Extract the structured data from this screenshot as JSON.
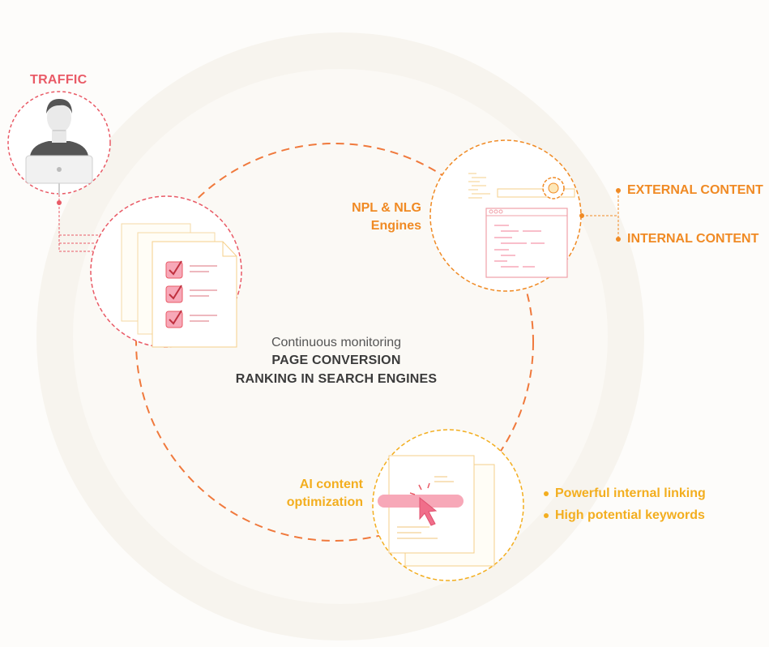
{
  "traffic_label": "TRAFFIC",
  "engines": {
    "line1": "NPL & NLG",
    "line2": "Engines"
  },
  "content_sources": [
    "EXTERNAL CONTENT",
    "INTERNAL CONTENT"
  ],
  "center": {
    "line1": "Continuous monitoring",
    "line2": "PAGE CONVERSION",
    "line3": "RANKING IN SEARCH ENGINES"
  },
  "ai": {
    "line1": "AI content",
    "line2": "optimization"
  },
  "ai_benefits": [
    "Powerful internal linking",
    "High potential keywords"
  ],
  "colors": {
    "traffic_red": "#e95a66",
    "orange": "#f08a24",
    "yellow": "#f3ae1f",
    "pink": "#f7a8b8"
  }
}
